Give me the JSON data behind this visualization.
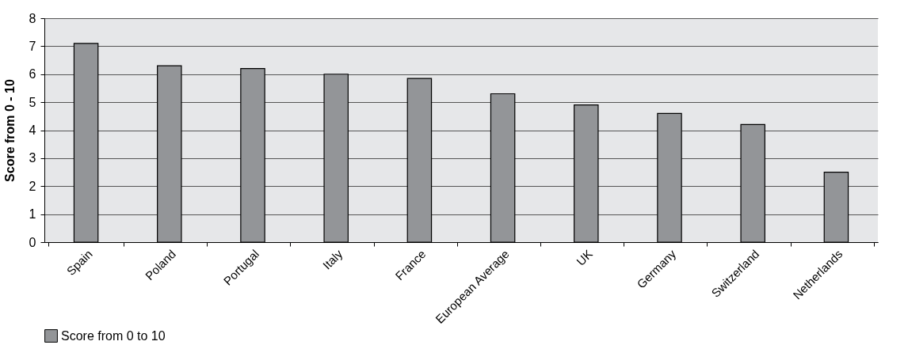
{
  "chart_data": {
    "type": "bar",
    "ylabel": "Score from 0 - 10",
    "categories": [
      "Spain",
      "Poland",
      "Portugal",
      "Italy",
      "France",
      "European Average",
      "UK",
      "Germany",
      "Switzerland",
      "Netherlands"
    ],
    "series": [
      {
        "name": "Score from 0 to 10",
        "color": "#939598",
        "values": [
          7.1,
          6.3,
          6.2,
          6.0,
          5.85,
          5.3,
          4.9,
          4.6,
          4.2,
          2.5
        ]
      }
    ],
    "ylim": [
      0,
      8
    ],
    "yticks": [
      0,
      1,
      2,
      3,
      4,
      5,
      6,
      7,
      8
    ],
    "grid": "y",
    "legend": "bottom"
  }
}
